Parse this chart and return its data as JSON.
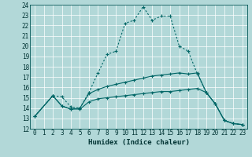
{
  "xlabel": "Humidex (Indice chaleur)",
  "xlim": [
    -0.5,
    23.5
  ],
  "ylim": [
    12,
    24
  ],
  "background_color": "#b2d8d8",
  "grid_color": "#ffffff",
  "line_color1": "#006666",
  "line_color2": "#006666",
  "line_color3": "#006666",
  "curve1_x": [
    0,
    2,
    3,
    4,
    5,
    6,
    7,
    8,
    9,
    10,
    11,
    12,
    13,
    14,
    15,
    16,
    17,
    18,
    19,
    20,
    21,
    22,
    23
  ],
  "curve1_y": [
    13.2,
    15.2,
    15.1,
    14.1,
    14.0,
    15.5,
    17.4,
    19.2,
    19.5,
    22.2,
    22.5,
    23.8,
    22.5,
    22.9,
    22.9,
    20.0,
    19.5,
    17.3,
    15.5,
    14.4,
    12.8,
    12.5,
    12.4
  ],
  "curve2_x": [
    0,
    2,
    3,
    4,
    5,
    6,
    7,
    8,
    9,
    10,
    11,
    12,
    13,
    14,
    15,
    16,
    17,
    18,
    19,
    20,
    21,
    22,
    23
  ],
  "curve2_y": [
    13.2,
    15.2,
    14.2,
    13.9,
    14.0,
    15.4,
    15.8,
    16.1,
    16.3,
    16.5,
    16.7,
    16.9,
    17.1,
    17.2,
    17.3,
    17.4,
    17.3,
    17.4,
    15.5,
    14.4,
    12.8,
    12.5,
    12.4
  ],
  "curve3_x": [
    0,
    2,
    3,
    4,
    5,
    6,
    7,
    8,
    9,
    10,
    11,
    12,
    13,
    14,
    15,
    16,
    17,
    18,
    19,
    20,
    21,
    22,
    23
  ],
  "curve3_y": [
    13.2,
    15.2,
    14.2,
    13.9,
    13.9,
    14.6,
    14.9,
    15.0,
    15.1,
    15.2,
    15.3,
    15.4,
    15.5,
    15.6,
    15.6,
    15.7,
    15.8,
    15.9,
    15.5,
    14.4,
    12.8,
    12.5,
    12.4
  ]
}
